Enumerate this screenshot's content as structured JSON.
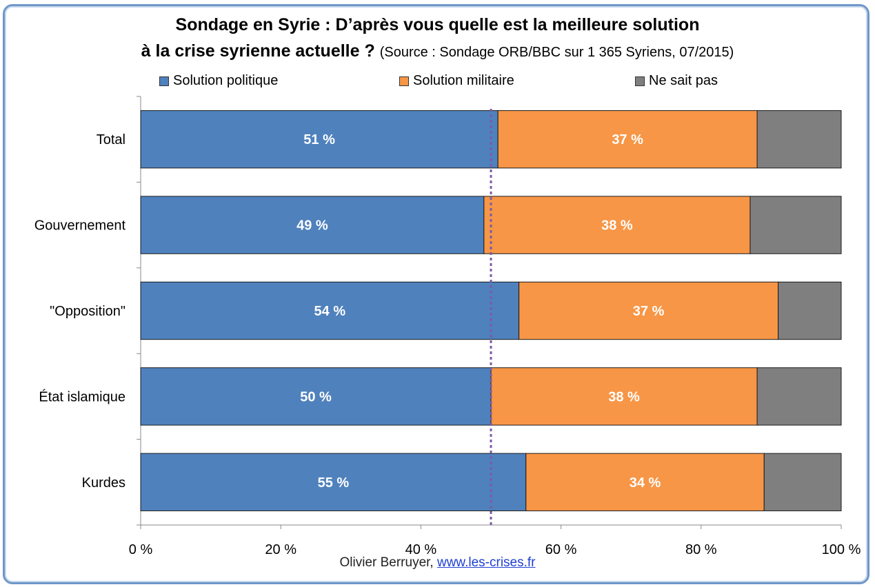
{
  "title_line1": "Sondage en Syrie : D’après vous quelle est la meilleure solution",
  "title_line2": "à la crise syrienne actuelle ?",
  "subtitle": "(Source : Sondage ORB/BBC sur 1 365 Syriens, 07/2015)",
  "credit": {
    "author": "Olivier Berruyer,",
    "link_text": "www.les-crises.fr"
  },
  "colors": {
    "politique": "#4f81bd",
    "militaire": "#f79646",
    "nsp": "#7f7f7f",
    "reference_line": "#7b5aa6"
  },
  "chart_data": {
    "type": "bar",
    "orientation": "horizontal",
    "stacked": true,
    "percent_stacked": true,
    "categories": [
      "Total",
      "Gouvernement",
      "\"Opposition\"",
      "État islamique",
      "Kurdes"
    ],
    "series": [
      {
        "name": "Solution politique",
        "values": [
          51,
          49,
          54,
          50,
          55
        ],
        "labels": [
          "51 %",
          "49 %",
          "54 %",
          "50 %",
          "55 %"
        ]
      },
      {
        "name": "Solution militaire",
        "values": [
          37,
          38,
          37,
          38,
          34
        ],
        "labels": [
          "37 %",
          "38 %",
          "37 %",
          "38 %",
          "34 %"
        ]
      },
      {
        "name": "Ne sait pas",
        "values": [
          12,
          13,
          9,
          12,
          11
        ],
        "labels": []
      }
    ],
    "xlim": [
      0,
      100
    ],
    "x_ticks": [
      "0 %",
      "20 %",
      "40 %",
      "60 %",
      "80 %",
      "100 %"
    ],
    "x_tick_values": [
      0,
      20,
      40,
      60,
      80,
      100
    ],
    "reference_line_x": 50,
    "legend_position": "top",
    "grid": false
  }
}
